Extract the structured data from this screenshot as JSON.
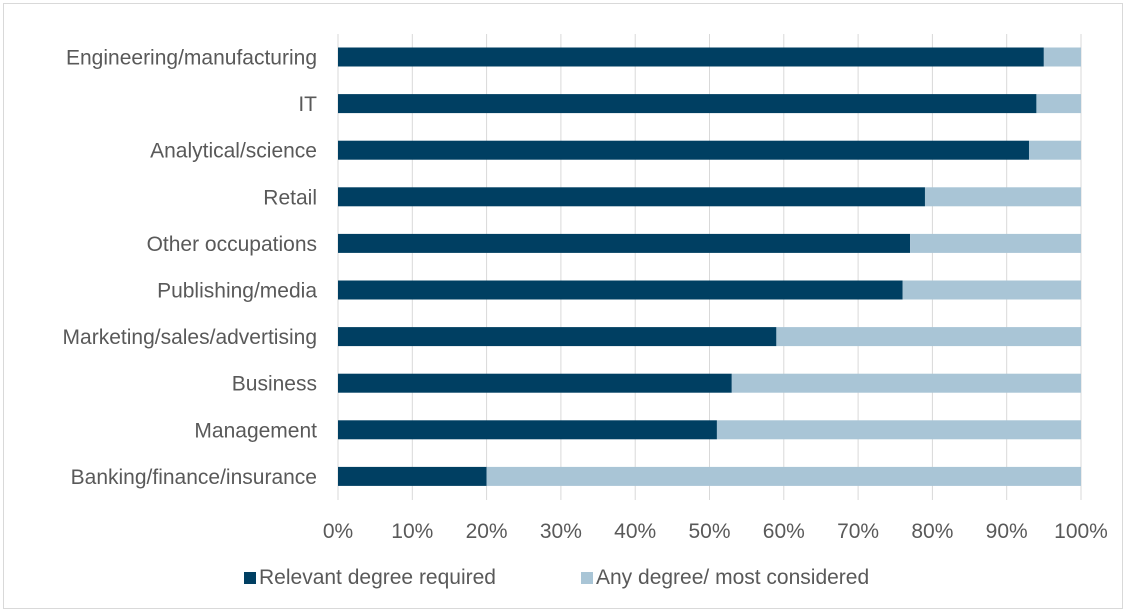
{
  "chart_data": {
    "type": "bar",
    "orientation": "horizontal",
    "stacked": true,
    "categories": [
      "Engineering/manufacturing",
      "IT",
      "Analytical/science",
      "Retail",
      "Other occupations",
      "Publishing/media",
      "Marketing/sales/advertising",
      "Business",
      "Management",
      "Banking/finance/insurance"
    ],
    "series": [
      {
        "name": "Relevant degree required",
        "color": "#003f62",
        "values": [
          95,
          94,
          93,
          79,
          77,
          76,
          59,
          53,
          51,
          20
        ]
      },
      {
        "name": "Any degree/ most considered",
        "color": "#a9c5d6",
        "values": [
          5,
          6,
          7,
          21,
          23,
          24,
          41,
          47,
          49,
          80
        ]
      }
    ],
    "x_ticks": [
      "0%",
      "10%",
      "20%",
      "30%",
      "40%",
      "50%",
      "60%",
      "70%",
      "80%",
      "90%",
      "100%"
    ],
    "xlim": [
      0,
      100
    ],
    "grid": true,
    "legend_position": "bottom",
    "title": "",
    "xlabel": "",
    "ylabel": ""
  }
}
